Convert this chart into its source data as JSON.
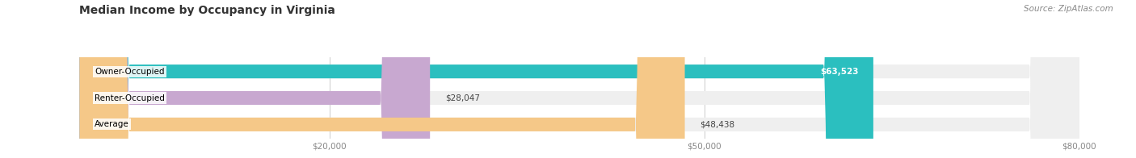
{
  "title": "Median Income by Occupancy in Virginia",
  "source": "Source: ZipAtlas.com",
  "categories": [
    "Owner-Occupied",
    "Renter-Occupied",
    "Average"
  ],
  "values": [
    63523,
    28047,
    48438
  ],
  "bar_colors": [
    "#2bbfbf",
    "#c8a8d0",
    "#f5c888"
  ],
  "bar_labels": [
    "$63,523",
    "$28,047",
    "$48,438"
  ],
  "label_inside": [
    true,
    false,
    false
  ],
  "xlim": [
    0,
    80000
  ],
  "xticks": [
    20000,
    50000,
    80000
  ],
  "xticklabels": [
    "$20,000",
    "$50,000",
    "$80,000"
  ],
  "background_color": "#ffffff",
  "bar_bg_color": "#efefef",
  "title_fontsize": 10,
  "source_fontsize": 7.5,
  "bar_label_fontsize": 7.5,
  "cat_label_fontsize": 7.5,
  "bar_height": 0.52
}
